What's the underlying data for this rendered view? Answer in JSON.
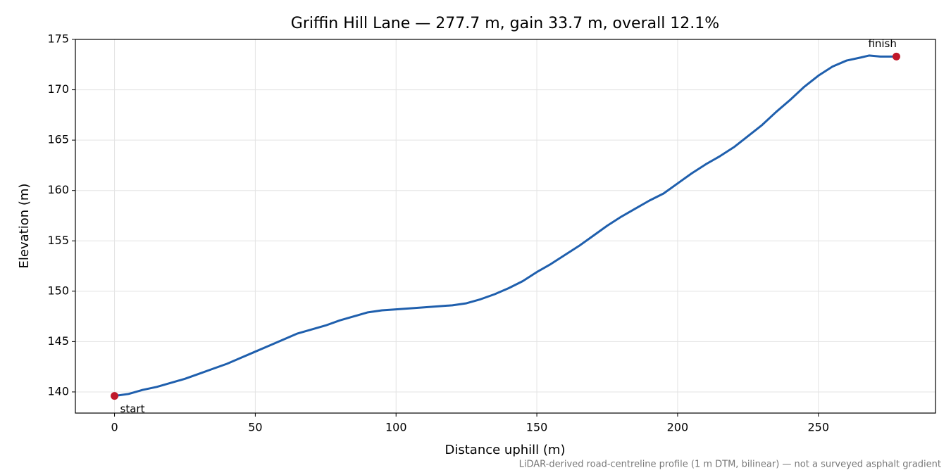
{
  "chart_data": {
    "type": "line",
    "title": "Griffin Hill Lane — 277.7 m, gain 33.7 m, overall 12.1%",
    "xlabel": "Distance uphill (m)",
    "ylabel": "Elevation (m)",
    "footnote": "LiDAR-derived road-centreline profile (1 m DTM, bilinear) — not a surveyed asphalt gradient",
    "x": [
      0,
      5,
      10,
      15,
      20,
      25,
      30,
      35,
      40,
      45,
      50,
      55,
      60,
      65,
      70,
      75,
      80,
      85,
      90,
      95,
      100,
      110,
      120,
      125,
      130,
      135,
      140,
      145,
      150,
      155,
      160,
      165,
      170,
      175,
      180,
      185,
      190,
      195,
      200,
      205,
      210,
      215,
      220,
      225,
      230,
      235,
      240,
      245,
      250,
      255,
      260,
      265,
      268,
      272,
      277.7
    ],
    "series": [
      {
        "name": "Elevation",
        "color": "#1f5fad",
        "values": [
          139.6,
          139.8,
          140.2,
          140.5,
          140.9,
          141.3,
          141.8,
          142.3,
          142.8,
          143.4,
          144.0,
          144.6,
          145.2,
          145.8,
          146.2,
          146.6,
          147.1,
          147.5,
          147.9,
          148.1,
          148.2,
          148.4,
          148.6,
          148.8,
          149.2,
          149.7,
          150.3,
          151.0,
          151.9,
          152.7,
          153.6,
          154.5,
          155.5,
          156.5,
          157.4,
          158.2,
          159.0,
          159.7,
          160.7,
          161.7,
          162.6,
          163.4,
          164.3,
          165.4,
          166.5,
          167.8,
          169.0,
          170.3,
          171.4,
          172.3,
          172.9,
          173.2,
          173.4,
          173.3,
          173.3
        ]
      }
    ],
    "markers": [
      {
        "label": "start",
        "x": 0,
        "y": 139.6,
        "color": "#c0182a"
      },
      {
        "label": "finish",
        "x": 277.7,
        "y": 173.3,
        "color": "#c0182a"
      }
    ],
    "xlim": [
      -13.9,
      291.6
    ],
    "ylim": [
      137.9,
      175.0
    ],
    "xticks": [
      0,
      50,
      100,
      150,
      200,
      250
    ],
    "yticks": [
      140,
      145,
      150,
      155,
      160,
      165,
      170,
      175
    ],
    "grid": true
  }
}
